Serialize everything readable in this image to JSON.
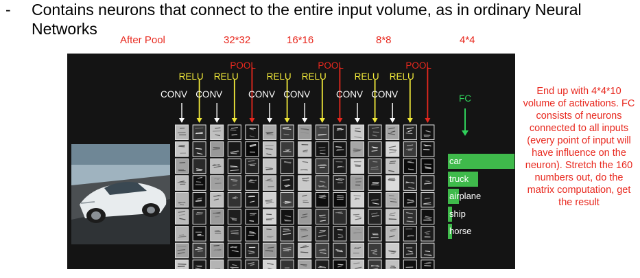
{
  "slide": {
    "bullet_marker": "-",
    "bullet_text": "Contains neurons that connect to the entire input volume, as in ordinary Neural Networks",
    "labels": {
      "after_pool": "After Pool",
      "size_32": "32*32",
      "size_16": "16*16",
      "size_8": "8*8",
      "size_4": "4*4"
    },
    "side_note": "End up with 4*4*10 volume of activations. FC consists of neurons connected to all inputs (every point of input will have influence on the neuron). Stretch the 160 numbers out, do the matrix computation, get the result"
  },
  "diagram": {
    "layers": [
      {
        "type": "conv",
        "label": "CONV"
      },
      {
        "type": "relu",
        "label": "RELU"
      },
      {
        "type": "conv",
        "label": "CONV"
      },
      {
        "type": "relu",
        "label": "RELU"
      },
      {
        "type": "pool",
        "label": "POOL"
      },
      {
        "type": "conv",
        "label": "CONV"
      },
      {
        "type": "relu",
        "label": "RELU"
      },
      {
        "type": "conv",
        "label": "CONV"
      },
      {
        "type": "relu",
        "label": "RELU"
      },
      {
        "type": "pool",
        "label": "POOL"
      },
      {
        "type": "conv",
        "label": "CONV"
      },
      {
        "type": "relu",
        "label": "RELU"
      },
      {
        "type": "conv",
        "label": "CONV"
      },
      {
        "type": "relu",
        "label": "RELU"
      },
      {
        "type": "pool",
        "label": "POOL"
      }
    ],
    "fc_label": "FC",
    "classes": [
      {
        "label": "car",
        "score": 1.0
      },
      {
        "label": "truck",
        "score": 0.45
      },
      {
        "label": "airplane",
        "score": 0.17
      },
      {
        "label": "ship",
        "score": 0.06
      },
      {
        "label": "horse",
        "score": 0.05
      }
    ],
    "colors": {
      "conv": "#ffffff",
      "relu": "#f2ea3a",
      "pool": "#e8281e",
      "fc": "#2fcf5a",
      "bar": "#3fba4b"
    }
  }
}
